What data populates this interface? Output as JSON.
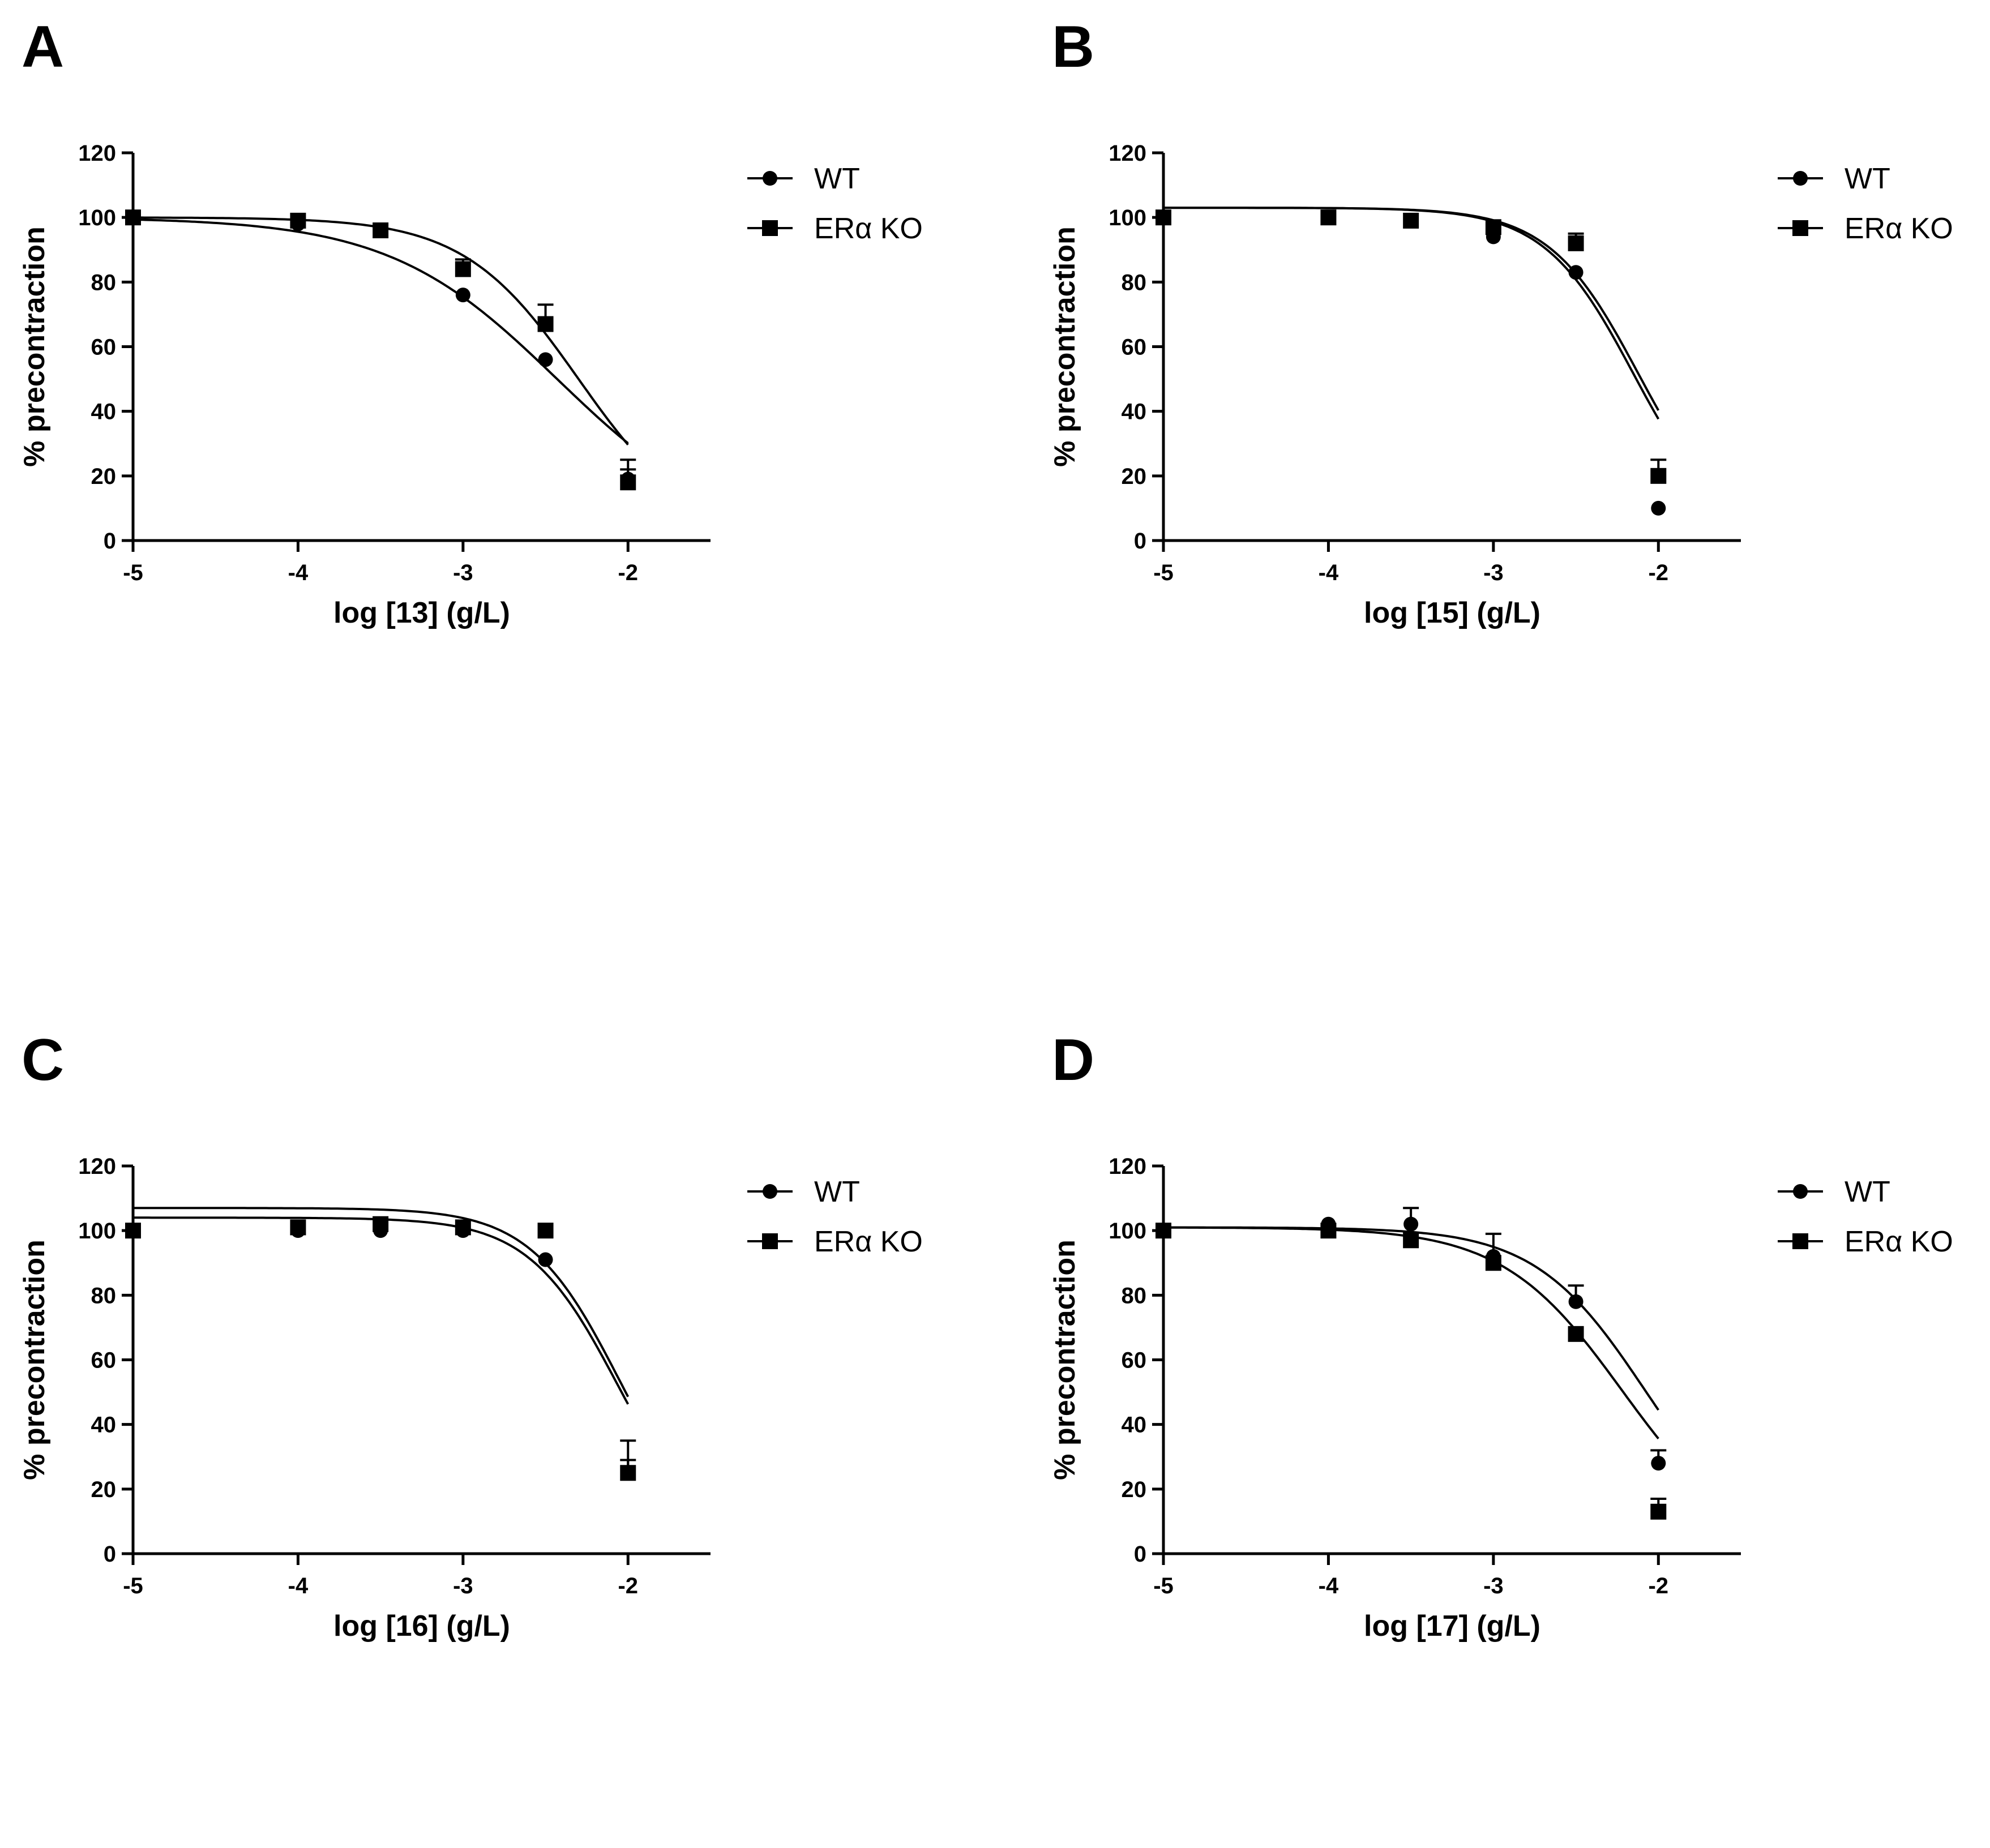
{
  "chart_data": [
    {
      "type": "line",
      "panel_label": "A",
      "title": "",
      "xlabel": "log [13] (g/L)",
      "ylabel": "% precontraction",
      "xlim": [
        -5,
        -1.5
      ],
      "ylim": [
        0,
        120
      ],
      "xticks": [
        -5,
        -4,
        -3,
        -2
      ],
      "xtick_labels": [
        "-5",
        "-4",
        "-3",
        "-2"
      ],
      "yticks": [
        0,
        20,
        40,
        60,
        80,
        100,
        120
      ],
      "ytick_labels": [
        "0",
        "20",
        "40",
        "60",
        "80",
        "100",
        "120"
      ],
      "legend_position": "top-right-outside",
      "series": [
        {
          "name": "WT",
          "marker": "circle",
          "x": [
            -5,
            -4,
            -3.5,
            -3,
            -2.5,
            -2
          ],
          "y": [
            100,
            98,
            96,
            76,
            56,
            19
          ],
          "err": [
            0,
            0,
            0,
            0,
            0,
            3
          ],
          "fit": {
            "top": 100,
            "bottom": 0,
            "logEC50": -2.43,
            "hill": 0.85
          }
        },
        {
          "name": "ERα KO",
          "marker": "square",
          "x": [
            -5,
            -4,
            -3.5,
            -3,
            -2.5,
            -2
          ],
          "y": [
            100,
            99,
            96,
            84,
            67,
            18
          ],
          "err": [
            0,
            0,
            0,
            3,
            6,
            7
          ],
          "fit": {
            "top": 100,
            "bottom": 0,
            "logEC50": -2.3,
            "hill": 1.25
          }
        }
      ]
    },
    {
      "type": "line",
      "panel_label": "B",
      "title": "",
      "xlabel": "log [15] (g/L)",
      "ylabel": "% precontraction",
      "xlim": [
        -5,
        -1.5
      ],
      "ylim": [
        0,
        120
      ],
      "xticks": [
        -5,
        -4,
        -3,
        -2
      ],
      "xtick_labels": [
        "-5",
        "-4",
        "-3",
        "-2"
      ],
      "yticks": [
        0,
        20,
        40,
        60,
        80,
        100,
        120
      ],
      "ytick_labels": [
        "0",
        "20",
        "40",
        "60",
        "80",
        "100",
        "120"
      ],
      "legend_position": "top-right-outside",
      "series": [
        {
          "name": "WT",
          "marker": "circle",
          "x": [
            -5,
            -4,
            -3.5,
            -3,
            -2.5,
            -2
          ],
          "y": [
            100,
            100,
            99,
            94,
            83,
            10
          ],
          "err": [
            0,
            0,
            0,
            0,
            0,
            0
          ],
          "fit": {
            "top": 103,
            "bottom": 0,
            "logEC50": -2.15,
            "hill": 1.6
          }
        },
        {
          "name": "ERα KO",
          "marker": "square",
          "x": [
            -5,
            -4,
            -3.5,
            -3,
            -2.5,
            -2
          ],
          "y": [
            100,
            100,
            99,
            97,
            92,
            20
          ],
          "err": [
            0,
            0,
            0,
            0,
            3,
            5
          ],
          "fit": {
            "top": 103,
            "bottom": 0,
            "logEC50": -2.12,
            "hill": 1.6
          }
        }
      ]
    },
    {
      "type": "line",
      "panel_label": "C",
      "title": "",
      "xlabel": "log [16] (g/L)",
      "ylabel": "% precontraction",
      "xlim": [
        -5,
        -1.5
      ],
      "ylim": [
        0,
        120
      ],
      "xticks": [
        -5,
        -4,
        -3,
        -2
      ],
      "xtick_labels": [
        "-5",
        "-4",
        "-3",
        "-2"
      ],
      "yticks": [
        0,
        20,
        40,
        60,
        80,
        100,
        120
      ],
      "ytick_labels": [
        "0",
        "20",
        "40",
        "60",
        "80",
        "100",
        "120"
      ],
      "legend_position": "top-right-outside",
      "series": [
        {
          "name": "WT",
          "marker": "circle",
          "x": [
            -5,
            -4,
            -3.5,
            -3,
            -2.5,
            -2
          ],
          "y": [
            100,
            100,
            100,
            100,
            91,
            25
          ],
          "err": [
            0,
            0,
            0,
            0,
            0,
            4
          ],
          "fit": {
            "top": 107,
            "bottom": 0,
            "logEC50": -2.05,
            "hill": 1.6
          }
        },
        {
          "name": "ERα KO",
          "marker": "square",
          "x": [
            -5,
            -4,
            -3.5,
            -3,
            -2.5,
            -2
          ],
          "y": [
            100,
            101,
            102,
            101,
            100,
            25
          ],
          "err": [
            0,
            0,
            0,
            0,
            0,
            10
          ],
          "fit": {
            "top": 104,
            "bottom": 0,
            "logEC50": -2.06,
            "hill": 1.6
          }
        }
      ]
    },
    {
      "type": "line",
      "panel_label": "D",
      "title": "",
      "xlabel": "log [17] (g/L)",
      "ylabel": "% precontraction",
      "xlim": [
        -5,
        -1.5
      ],
      "ylim": [
        0,
        120
      ],
      "xticks": [
        -5,
        -4,
        -3,
        -2
      ],
      "xtick_labels": [
        "-5",
        "-4",
        "-3",
        "-2"
      ],
      "yticks": [
        0,
        20,
        40,
        60,
        80,
        100,
        120
      ],
      "ytick_labels": [
        "0",
        "20",
        "40",
        "60",
        "80",
        "100",
        "120"
      ],
      "legend_position": "top-right-outside",
      "series": [
        {
          "name": "WT",
          "marker": "circle",
          "x": [
            -5,
            -4,
            -3.5,
            -3,
            -2.5,
            -2
          ],
          "y": [
            100,
            102,
            102,
            92,
            78,
            28
          ],
          "err": [
            0,
            0,
            5,
            7,
            5,
            4
          ],
          "fit": {
            "top": 101,
            "bottom": 0,
            "logEC50": -2.08,
            "hill": 1.3
          }
        },
        {
          "name": "ERα KO",
          "marker": "square",
          "x": [
            -5,
            -4,
            -3.5,
            -3,
            -2.5,
            -2
          ],
          "y": [
            100,
            100,
            97,
            90,
            68,
            13
          ],
          "err": [
            0,
            0,
            0,
            0,
            0,
            4
          ],
          "fit": {
            "top": 101,
            "bottom": 0,
            "logEC50": -2.22,
            "hill": 1.2
          }
        }
      ]
    }
  ]
}
